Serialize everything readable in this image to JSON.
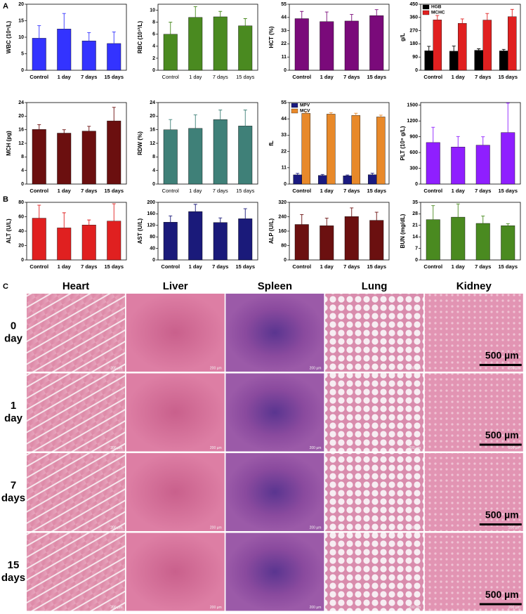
{
  "panel_labels": [
    "A",
    "B",
    "C"
  ],
  "chart_data": [
    {
      "type": "bar",
      "ylabel": "WBC (10⁹/L)",
      "categories": [
        "Control",
        "1 day",
        "7 days",
        "15 days"
      ],
      "series": [
        {
          "color": "#3333ff",
          "values": [
            9.7,
            12.5,
            8.9,
            8.1
          ],
          "errors": [
            3.8,
            4.7,
            2.5,
            3.5
          ]
        }
      ],
      "ylim": [
        0,
        20
      ],
      "yticks": [
        0,
        5,
        10,
        15,
        20
      ]
    },
    {
      "type": "bar",
      "ylabel": "RBC (10¹²/L)",
      "categories": [
        "Control",
        "1 day",
        "7 days",
        "15 days"
      ],
      "series": [
        {
          "color": "#4a8a20",
          "values": [
            6.0,
            8.8,
            8.9,
            7.4
          ],
          "errors": [
            2.0,
            1.8,
            0.9,
            1.2
          ]
        }
      ],
      "ylim": [
        0,
        11
      ],
      "yticks": [
        0,
        2,
        4,
        6,
        8,
        10
      ]
    },
    {
      "type": "bar",
      "ylabel": "HCT (%)",
      "categories": [
        "Control",
        "1 day",
        "7 days",
        "15 days"
      ],
      "series": [
        {
          "color": "#7a0a7a",
          "values": [
            43,
            40.5,
            41,
            45.5
          ],
          "errors": [
            6,
            8,
            5.5,
            5
          ]
        }
      ],
      "ylim": [
        0,
        55
      ],
      "yticks": [
        0,
        11,
        22,
        33,
        44,
        55
      ]
    },
    {
      "type": "bar",
      "ylabel": "g/L",
      "categories": [
        "Control",
        "1 day",
        "7 days",
        "15 days"
      ],
      "legend": "upper left",
      "series": [
        {
          "name": "HGB",
          "color": "#000000",
          "values": [
            133,
            130,
            136,
            132
          ],
          "errors": [
            30,
            35,
            10,
            10
          ]
        },
        {
          "name": "MCHC",
          "color": "#e02020",
          "values": [
            343,
            320,
            342,
            365
          ],
          "errors": [
            30,
            30,
            45,
            50
          ]
        }
      ],
      "ylim": [
        0,
        450
      ],
      "yticks": [
        0,
        90,
        180,
        270,
        360,
        450
      ]
    },
    {
      "type": "bar",
      "ylabel": "MCH (pg)",
      "categories": [
        "Control",
        "1 day",
        "7 days",
        "15 days"
      ],
      "series": [
        {
          "color": "#6b0f0f",
          "values": [
            16.1,
            15.0,
            15.6,
            18.6
          ],
          "errors": [
            1.4,
            1.0,
            1.4,
            4.0
          ]
        }
      ],
      "ylim": [
        0,
        24
      ],
      "yticks": [
        0,
        4,
        8,
        12,
        16,
        20,
        24
      ]
    },
    {
      "type": "bar",
      "ylabel": "RDW (%)",
      "categories": [
        "Control",
        "1 day",
        "7 days",
        "15 days"
      ],
      "series": [
        {
          "color": "#3f8078",
          "values": [
            16.0,
            16.4,
            19.0,
            17.1
          ],
          "errors": [
            3.0,
            4.0,
            2.8,
            4.7
          ]
        }
      ],
      "ylim": [
        0,
        24
      ],
      "yticks": [
        0,
        4,
        8,
        12,
        16,
        20,
        24
      ]
    },
    {
      "type": "bar",
      "ylabel": "fL",
      "categories": [
        "Control",
        "1 day",
        "7 days",
        "15 days"
      ],
      "legend": "upper left",
      "series": [
        {
          "name": "MPV",
          "color": "#1a1a80",
          "values": [
            6.2,
            5.8,
            5.6,
            6.3
          ],
          "errors": [
            1.0,
            0.7,
            0.5,
            1.0
          ]
        },
        {
          "name": "MCV",
          "color": "#e8892a",
          "values": [
            47.7,
            47.2,
            46.3,
            45.3
          ],
          "errors": [
            0.8,
            1.0,
            1.5,
            1.2
          ]
        }
      ],
      "ylim": [
        0,
        55
      ],
      "yticks": [
        0,
        11,
        22,
        33,
        44,
        55
      ]
    },
    {
      "type": "bar",
      "ylabel": "PLT (10⁹ g/L)",
      "categories": [
        "Control",
        "1 day",
        "7 days",
        "15 days"
      ],
      "series": [
        {
          "color": "#8f1fff",
          "values": [
            790,
            705,
            740,
            980
          ],
          "errors": [
            290,
            200,
            160,
            560
          ]
        }
      ],
      "ylim": [
        0,
        1550
      ],
      "yticks": [
        0,
        300,
        600,
        900,
        1200,
        1500
      ]
    },
    {
      "type": "bar",
      "ylabel": "ALT (U/L)",
      "categories": [
        "Control",
        "1 day",
        "7 days",
        "15 days"
      ],
      "series": [
        {
          "color": "#e02020",
          "values": [
            58,
            44.5,
            48.5,
            54
          ],
          "errors": [
            18,
            21,
            7,
            24
          ]
        }
      ],
      "ylim": [
        0,
        80
      ],
      "yticks": [
        0,
        20,
        40,
        60,
        80
      ]
    },
    {
      "type": "bar",
      "ylabel": "AST (U/L)",
      "categories": [
        "Control",
        "1 day",
        "7 days",
        "15 days"
      ],
      "series": [
        {
          "color": "#1a1a7a",
          "values": [
            131,
            168,
            130,
            143
          ],
          "errors": [
            22,
            25,
            16,
            35
          ]
        }
      ],
      "ylim": [
        0,
        200
      ],
      "yticks": [
        0,
        40,
        80,
        120,
        160,
        200
      ]
    },
    {
      "type": "bar",
      "ylabel": "ALP (U/L)",
      "categories": [
        "Control",
        "1 day",
        "7 days",
        "15 days"
      ],
      "series": [
        {
          "color": "#6b1010",
          "values": [
            197,
            190,
            241,
            220
          ],
          "errors": [
            55,
            42,
            48,
            45
          ]
        }
      ],
      "ylim": [
        0,
        320
      ],
      "yticks": [
        0,
        80,
        160,
        240,
        320
      ]
    },
    {
      "type": "bar",
      "ylabel": "BUN (mg/dL)",
      "categories": [
        "Control",
        "1 day",
        "7 days",
        "15 days"
      ],
      "series": [
        {
          "color": "#4a8a20",
          "values": [
            24.5,
            26,
            22.2,
            20.8
          ],
          "errors": [
            8.5,
            8,
            4.5,
            1.2
          ]
        }
      ],
      "ylim": [
        0,
        35
      ],
      "yticks": [
        0,
        7,
        14,
        21,
        28,
        35
      ]
    }
  ],
  "histology": {
    "columns": [
      "Heart",
      "Liver",
      "Spleen",
      "Lung",
      "Kidney"
    ],
    "rows": [
      [
        "0",
        "day"
      ],
      [
        "1",
        "day"
      ],
      [
        "7",
        "days"
      ],
      [
        "15",
        "days"
      ]
    ],
    "scale_bar_label": "500 µm",
    "image_scale_label": "200 µm"
  }
}
